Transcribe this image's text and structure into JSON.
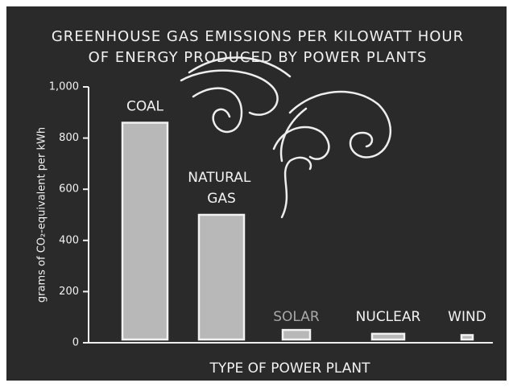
{
  "chart_data": {
    "type": "bar",
    "title": [
      "GREENHOUSE GAS EMISSIONS PER KILOWATT HOUR",
      "OF ENERGY PRODUCED BY POWER PLANTS"
    ],
    "x_label": "TYPE OF POWER PLANT",
    "y_label": "grams of CO₂-equivalent per kWh",
    "categories": [
      "COAL",
      "NATURAL GAS",
      "SOLAR",
      "NUCLEAR",
      "WIND"
    ],
    "values": [
      860,
      500,
      50,
      35,
      30
    ],
    "color": "#b8b8b8",
    "ylim": [
      0,
      1000
    ],
    "yticks": [
      0,
      200,
      400,
      600,
      800,
      {
        "value": 1000,
        "label": "1,000"
      }
    ]
  }
}
